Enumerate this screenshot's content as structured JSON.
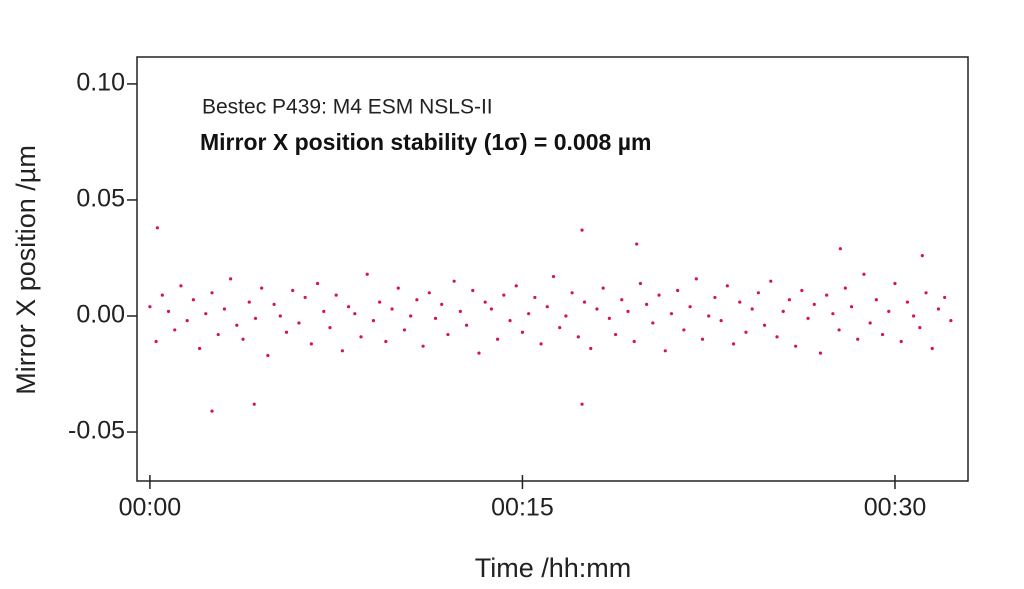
{
  "chart_data": {
    "type": "scatter",
    "annotations": [
      "Bestec P439: M4 ESM NSLS-II",
      "Mirror X position stability (1σ) = 0.008 µm"
    ],
    "x_label": "Time /hh:mm",
    "y_label": "Mirror X position /µm",
    "color": "#d6134a",
    "xlim": [
      -0.52,
      32.94
    ],
    "ylim": [
      -0.0711,
      0.1116
    ],
    "xticks": [
      {
        "value": 0,
        "label": "00:00"
      },
      {
        "value": 15,
        "label": "00:15"
      },
      {
        "value": 30,
        "label": "00:30"
      }
    ],
    "yticks": [
      {
        "value": -0.05,
        "label": "-0.05"
      },
      {
        "value": 0,
        "label": "0.00"
      },
      {
        "value": 0.05,
        "label": "0.05"
      },
      {
        "value": 0.1,
        "label": "0.10"
      }
    ],
    "grid": false,
    "x": [
      0,
      0.25,
      0.5,
      0.75,
      1,
      1.25,
      1.5,
      1.75,
      2,
      2.25,
      2.5,
      2.75,
      3,
      3.25,
      3.5,
      3.75,
      4,
      4.25,
      4.5,
      4.75,
      5,
      5.25,
      5.5,
      5.75,
      6,
      6.25,
      6.5,
      6.75,
      7,
      7.25,
      7.5,
      7.75,
      8,
      8.25,
      8.5,
      8.75,
      9,
      9.25,
      9.5,
      9.75,
      10,
      10.25,
      10.5,
      10.75,
      11,
      11.25,
      11.5,
      11.75,
      12,
      12.25,
      12.5,
      12.75,
      13,
      13.25,
      13.5,
      13.75,
      14,
      14.25,
      14.5,
      14.75,
      15,
      15.25,
      15.5,
      15.75,
      16,
      16.25,
      16.5,
      16.75,
      17,
      17.25,
      17.5,
      17.75,
      18,
      18.25,
      18.5,
      18.75,
      19,
      19.25,
      19.5,
      19.75,
      20,
      20.25,
      20.5,
      20.75,
      21,
      21.25,
      21.5,
      21.75,
      22,
      22.25,
      22.5,
      22.75,
      23,
      23.25,
      23.5,
      23.75,
      24,
      24.25,
      24.5,
      24.75,
      25,
      25.25,
      25.5,
      25.75,
      26,
      26.25,
      26.5,
      26.75,
      27,
      27.25,
      27.5,
      27.75,
      28,
      28.25,
      28.5,
      28.75,
      29,
      29.25,
      29.5,
      29.75,
      30,
      30.25,
      30.5,
      30.75,
      31,
      31.25,
      31.5,
      31.75,
      32,
      32.25,
      0.3,
      2.5,
      4.2,
      17.4,
      17.4,
      19.6,
      27.8,
      31.1
    ],
    "values": [
      0.004,
      -0.011,
      0.009,
      0.002,
      -0.006,
      0.013,
      -0.002,
      0.007,
      -0.014,
      0.001,
      0.01,
      -0.008,
      0.003,
      0.016,
      -0.004,
      -0.01,
      0.006,
      -0.001,
      0.012,
      -0.017,
      0.005,
      0.0,
      -0.007,
      0.011,
      -0.003,
      0.008,
      -0.012,
      0.014,
      0.002,
      -0.005,
      0.009,
      -0.015,
      0.004,
      0.001,
      -0.009,
      0.018,
      -0.002,
      0.006,
      -0.011,
      0.003,
      0.012,
      -0.006,
      0.0,
      0.007,
      -0.013,
      0.01,
      -0.001,
      0.005,
      -0.008,
      0.015,
      0.002,
      -0.004,
      0.011,
      -0.016,
      0.006,
      0.003,
      -0.01,
      0.009,
      -0.002,
      0.013,
      -0.007,
      0.001,
      0.008,
      -0.012,
      0.004,
      0.017,
      -0.005,
      0.0,
      0.01,
      -0.009,
      0.006,
      -0.014,
      0.003,
      0.012,
      -0.001,
      -0.008,
      0.007,
      0.002,
      -0.011,
      0.014,
      0.005,
      -0.003,
      0.009,
      -0.015,
      0.001,
      0.011,
      -0.006,
      0.004,
      0.016,
      -0.01,
      0.0,
      0.008,
      -0.002,
      0.013,
      -0.012,
      0.006,
      -0.007,
      0.003,
      0.01,
      -0.004,
      0.015,
      -0.009,
      0.002,
      0.007,
      -0.013,
      0.011,
      -0.001,
      0.005,
      -0.016,
      0.009,
      0.001,
      -0.006,
      0.012,
      0.004,
      -0.01,
      0.018,
      -0.003,
      0.007,
      -0.008,
      0.002,
      0.014,
      -0.011,
      0.006,
      0.0,
      -0.005,
      0.01,
      -0.014,
      0.003,
      0.008,
      -0.002,
      0.038,
      -0.041,
      -0.038,
      0.037,
      -0.038,
      0.031,
      0.029,
      0.026
    ]
  }
}
